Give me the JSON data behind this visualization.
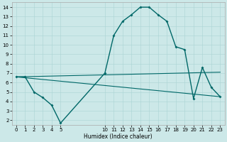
{
  "xlabel": "Humidex (Indice chaleur)",
  "background_color": "#cce8e8",
  "line_color": "#006868",
  "xlim": [
    -0.5,
    23.5
  ],
  "ylim": [
    1.5,
    14.5
  ],
  "yticks": [
    2,
    3,
    4,
    5,
    6,
    7,
    8,
    9,
    10,
    11,
    12,
    13,
    14
  ],
  "xticks": [
    0,
    1,
    2,
    3,
    4,
    5,
    10,
    11,
    12,
    13,
    14,
    15,
    16,
    17,
    18,
    19,
    20,
    21,
    22,
    23
  ],
  "xtick_labels": [
    "0",
    "1",
    "2",
    "3",
    "4",
    "5",
    "10",
    "11",
    "12",
    "13",
    "14",
    "15",
    "16",
    "17",
    "18",
    "19",
    "20",
    "21",
    "22",
    "23"
  ],
  "humidex": {
    "x": [
      0,
      1,
      2,
      3,
      4,
      5,
      10,
      11,
      12,
      13,
      14,
      15,
      16,
      17,
      18,
      19,
      20,
      21,
      22,
      23
    ],
    "y": [
      6.6,
      6.6,
      5.0,
      4.4,
      3.6,
      1.7,
      7.0,
      11.0,
      12.5,
      13.2,
      14.0,
      14.0,
      13.2,
      12.5,
      9.8,
      9.5,
      4.3,
      7.6,
      5.5,
      4.5
    ]
  },
  "line2": {
    "x": [
      0,
      23
    ],
    "y": [
      6.6,
      7.1
    ]
  },
  "line3": {
    "x": [
      0,
      23
    ],
    "y": [
      6.6,
      4.5
    ]
  }
}
